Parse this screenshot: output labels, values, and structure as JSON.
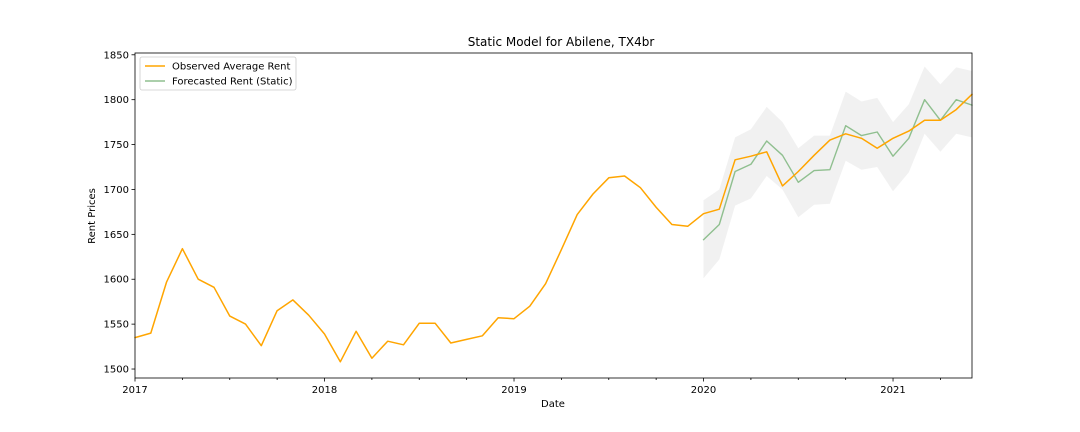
{
  "chart_data": {
    "type": "line",
    "title": "Static Model for Abilene, TX4br",
    "xlabel": "Date",
    "ylabel": "Rent Prices",
    "xlim": [
      "2017-01",
      "2021-06"
    ],
    "ylim": [
      1490,
      1852
    ],
    "x_ticks": [
      "2017",
      "2018",
      "2019",
      "2020",
      "2021"
    ],
    "y_ticks": [
      1500,
      1550,
      1600,
      1650,
      1700,
      1750,
      1800,
      1850
    ],
    "grid": false,
    "legend_position": "top-left",
    "series": [
      {
        "name": "Observed Average Rent",
        "color": "#FFA500",
        "x": [
          "2017-01",
          "2017-02",
          "2017-03",
          "2017-04",
          "2017-05",
          "2017-06",
          "2017-07",
          "2017-08",
          "2017-09",
          "2017-10",
          "2017-11",
          "2017-12",
          "2018-01",
          "2018-02",
          "2018-03",
          "2018-04",
          "2018-05",
          "2018-06",
          "2018-07",
          "2018-08",
          "2018-09",
          "2018-10",
          "2018-11",
          "2018-12",
          "2019-01",
          "2019-02",
          "2019-03",
          "2019-04",
          "2019-05",
          "2019-06",
          "2019-07",
          "2019-08",
          "2019-09",
          "2019-10",
          "2019-11",
          "2019-12",
          "2020-01",
          "2020-02",
          "2020-03",
          "2020-04",
          "2020-05",
          "2020-06",
          "2020-07",
          "2020-08",
          "2020-09",
          "2020-10",
          "2020-11",
          "2020-12",
          "2021-01",
          "2021-02",
          "2021-03",
          "2021-04",
          "2021-05",
          "2021-06"
        ],
        "values": [
          1535,
          1540,
          1597,
          1634,
          1600,
          1591,
          1559,
          1550,
          1526,
          1565,
          1577,
          1560,
          1539,
          1508,
          1542,
          1512,
          1531,
          1527,
          1551,
          1551,
          1529,
          1533,
          1537,
          1557,
          1556,
          1570,
          1595,
          1633,
          1672,
          1695,
          1713,
          1715,
          1702,
          1680,
          1661,
          1659,
          1673,
          1678,
          1733,
          1737,
          1742,
          1704,
          1720,
          1738,
          1755,
          1762,
          1757,
          1746,
          1757,
          1765,
          1777,
          1777,
          1789,
          1806
        ]
      },
      {
        "name": "Forecasted Rent (Static)",
        "color": "#8FBF8F",
        "x": [
          "2020-01",
          "2020-02",
          "2020-03",
          "2020-04",
          "2020-05",
          "2020-06",
          "2020-07",
          "2020-08",
          "2020-09",
          "2020-10",
          "2020-11",
          "2020-12",
          "2021-01",
          "2021-02",
          "2021-03",
          "2021-04",
          "2021-05",
          "2021-06"
        ],
        "values": [
          1644,
          1661,
          1720,
          1728,
          1754,
          1738,
          1708,
          1721,
          1722,
          1771,
          1760,
          1764,
          1737,
          1757,
          1800,
          1777,
          1800,
          1794
        ],
        "lower": [
          1601,
          1622,
          1682,
          1690,
          1715,
          1700,
          1669,
          1683,
          1684,
          1732,
          1722,
          1725,
          1698,
          1719,
          1762,
          1742,
          1762,
          1758
        ],
        "upper": [
          1688,
          1700,
          1758,
          1767,
          1792,
          1775,
          1746,
          1760,
          1760,
          1809,
          1798,
          1802,
          1775,
          1795,
          1837,
          1817,
          1836,
          1832
        ]
      }
    ]
  }
}
